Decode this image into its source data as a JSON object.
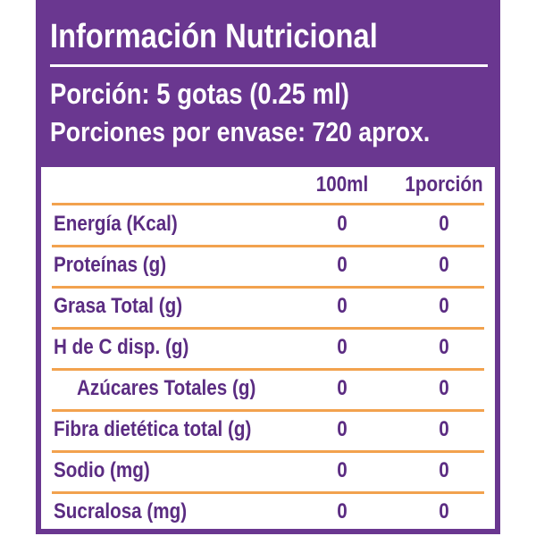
{
  "header": {
    "title": "Información Nutricional",
    "serving": "Porción: 5 gotas (0.25 ml)",
    "servings_per_container": "Porciones por envase: 720 aprox."
  },
  "table": {
    "columns": [
      "100ml",
      "1porción"
    ],
    "rows": [
      [
        "Energía (Kcal)",
        0,
        0
      ],
      [
        "Proteínas (g)",
        0,
        0
      ],
      [
        "Grasa Total (g)",
        0,
        0
      ],
      [
        "H de C disp. (g)",
        0,
        0
      ],
      [
        "Azúcares Totales (g)",
        0,
        0
      ],
      [
        "Fibra dietética total (g)",
        0,
        0
      ],
      [
        "Sodio (mg)",
        0,
        0
      ],
      [
        "Sucralosa (mg)",
        0,
        0
      ]
    ]
  }
}
